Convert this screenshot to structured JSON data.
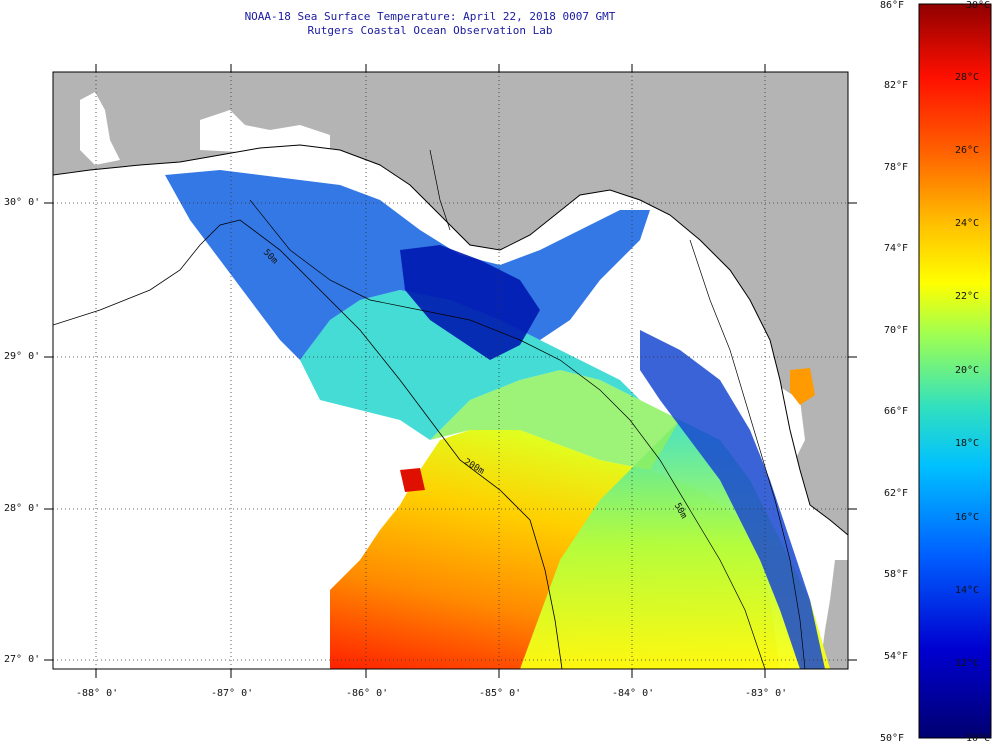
{
  "header": {
    "title_line1": "NOAA-18 Sea Surface Temperature:  April 22, 2018 0007 GMT",
    "title_line2": "Rutgers Coastal Ocean Observation Lab"
  },
  "map": {
    "lat_labels": [
      "30° 0'",
      "29° 0'",
      "28° 0'",
      "27° 0'"
    ],
    "lon_labels": [
      "-88° 0'",
      "-87° 0'",
      "-86° 0'",
      "-85° 0'",
      "-84° 0'",
      "-83° 0'"
    ],
    "isobath_labels": [
      "50m",
      "200m",
      "50m"
    ]
  },
  "colorbar": {
    "fahrenheit_labels": [
      "86°F",
      "82°F",
      "78°F",
      "74°F",
      "70°F",
      "66°F",
      "62°F",
      "58°F",
      "54°F",
      "50°F"
    ],
    "celsius_labels": [
      "30°C",
      "28°C",
      "26°C",
      "24°C",
      "22°C",
      "20°C",
      "18°C",
      "16°C",
      "14°C",
      "12°C",
      "10°C"
    ],
    "colors": [
      "#8b0000",
      "#ff2000",
      "#ff9000",
      "#ffff00",
      "#a0ff40",
      "#20e0e0",
      "#0080ff",
      "#0000c0",
      "#000080"
    ]
  },
  "colors": {
    "land": "#b4b4b4",
    "title": "#1a1aa0"
  }
}
